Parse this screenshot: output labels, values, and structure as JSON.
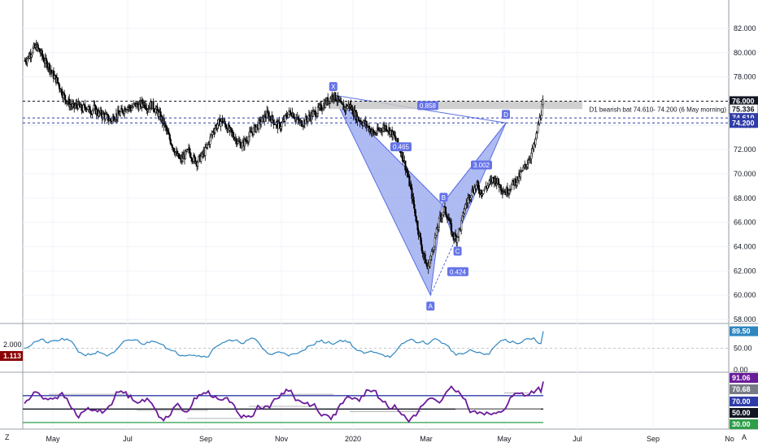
{
  "chart_data": [
    {
      "type": "candlestick",
      "panel": "price",
      "ylim": [
        58,
        83
      ],
      "y_ticks": [
        "82.000",
        "80.000",
        "78.000",
        "76.000",
        "74.000",
        "72.000",
        "70.000",
        "68.000",
        "66.000",
        "64.000",
        "62.000",
        "60.000",
        "58.000"
      ],
      "x_ticks": [
        "May",
        "Jul",
        "Sep",
        "Nov",
        "2020",
        "Mar",
        "May",
        "Jul",
        "Sep",
        "No"
      ],
      "series": [
        {
          "close": [
            79.3,
            79.6,
            80.2,
            80.5,
            80.0,
            79.3,
            78.9,
            78.2,
            77.7,
            76.9,
            76.2,
            75.8,
            75.5,
            75.7,
            75.3,
            75.6,
            75.2,
            75.4,
            75.0,
            74.9,
            74.7,
            74.4,
            74.8,
            74.9,
            75.2,
            75.6,
            75.4,
            75.7,
            75.6,
            75.9,
            75.5,
            75.7,
            75.3,
            74.8,
            74.1,
            73.2,
            72.4,
            71.6,
            71.1,
            71.5,
            71.9,
            71.3,
            71.0,
            71.4,
            71.9,
            72.7,
            73.6,
            74.1,
            74.4,
            74.0,
            73.5,
            73.1,
            72.6,
            72.4,
            72.8,
            73.3,
            73.7,
            74.1,
            74.5,
            74.9,
            74.6,
            74.2,
            73.9,
            74.3,
            74.9,
            75.1,
            74.6,
            74.2,
            74.3,
            74.6,
            74.9,
            75.1,
            75.4,
            75.8,
            76.1,
            76.5,
            76.2,
            75.6,
            75.4,
            75.7,
            75.1,
            74.6,
            74.3,
            74.1,
            73.7,
            73.3,
            73.5,
            73.8,
            73.9,
            73.5,
            73.0,
            72.3,
            71.4,
            70.1,
            68.6,
            66.7,
            64.9,
            63.3,
            62.2,
            63.4,
            64.9,
            66.3,
            67.1,
            66.4,
            65.0,
            64.7,
            65.6,
            67.2,
            68.1,
            68.7,
            69.0,
            68.5,
            68.8,
            69.2,
            69.6,
            69.3,
            68.8,
            68.5,
            68.9,
            69.3,
            69.6,
            70.2,
            70.8,
            71.5,
            72.4,
            74.2,
            75.8
          ]
        }
      ],
      "annotations": {
        "right_note": "D1 bearish bat 74.610- 74.200 (6 May morning)",
        "price_tags": [
          {
            "text": "76.000",
            "value": 76.0,
            "style": "black"
          },
          {
            "text": "75.336",
            "value": 75.336,
            "style": "white"
          },
          {
            "text": "74.610",
            "value": 74.61,
            "style": "blue"
          },
          {
            "text": "74.200",
            "value": 74.2,
            "style": "blue"
          }
        ],
        "horizontal_lines": [
          76.0,
          74.61,
          74.2
        ],
        "pattern_points": [
          {
            "label": "X",
            "value": 76.5
          },
          {
            "label": "A",
            "value": 60.0
          },
          {
            "label": "B",
            "value": 67.5
          },
          {
            "label": "C",
            "value": 64.4
          },
          {
            "label": "D",
            "value": 74.2
          }
        ],
        "ratios": [
          "0.858",
          "0.465",
          "3.002",
          "0.424"
        ]
      }
    },
    {
      "type": "line",
      "panel": "rsi",
      "ylim": [
        0,
        100
      ],
      "y_ticks": [
        "100.00",
        "50.00",
        "0.00"
      ],
      "left_labels": {
        "scale": "2.000",
        "value_tag": "1.113"
      },
      "price_tag": "89.50",
      "color": "#2e86c1"
    },
    {
      "type": "line",
      "panel": "oscillator",
      "ylim": [
        25,
        100
      ],
      "price_tags": [
        {
          "text": "91.06",
          "style": "purple"
        },
        {
          "text": "70.68",
          "style": "gray"
        },
        {
          "text": "70.00",
          "style": "navy"
        },
        {
          "text": "50.00",
          "style": "black"
        },
        {
          "text": "30.00",
          "style": "green"
        }
      ],
      "levels": [
        70,
        50,
        30
      ],
      "color": "#6a1b9a"
    }
  ],
  "ui": {
    "corner_left": "Z",
    "corner_right": "A"
  },
  "colors": {
    "pattern_fill": "#8c9eed",
    "pattern_stroke": "#5b6ee1",
    "label_bg": "#6674e8",
    "candle": "#000000",
    "gray_box": "#c8c8c8"
  }
}
